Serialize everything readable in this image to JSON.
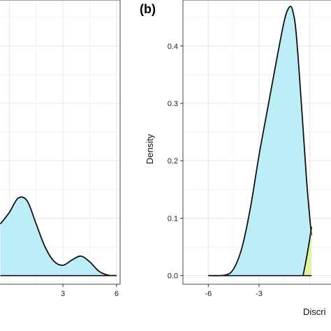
{
  "chart_data": [
    {
      "type": "area",
      "panel_label": "",
      "title": "",
      "xlabel": "",
      "ylabel": "",
      "xlim": [
        -0.6,
        6.2
      ],
      "ylim": [
        -0.015,
        0.48
      ],
      "x_ticks": [
        3,
        6
      ],
      "x_tick_labels": [
        "3",
        "6"
      ],
      "grid": true,
      "colors": {
        "fill_primary": "#bdeef7",
        "outline": "#111111",
        "grid": "#e6e6e6",
        "frame": "#666666"
      },
      "series": [
        {
          "fill": "#bdeef7",
          "x": [
            -0.5,
            0,
            0.5,
            1.0,
            1.5,
            2.0,
            2.5,
            3.0,
            3.5,
            4.0,
            4.5,
            5.0,
            5.5,
            6.0
          ],
          "y": [
            0.09,
            0.11,
            0.135,
            0.13,
            0.09,
            0.05,
            0.025,
            0.018,
            0.027,
            0.034,
            0.024,
            0.008,
            0.001,
            0.0
          ]
        }
      ]
    },
    {
      "type": "area",
      "panel_label": "(b)",
      "title": "",
      "xlabel": "Discri",
      "ylabel": "Density",
      "xlim": [
        -7.5,
        1.5
      ],
      "ylim": [
        -0.015,
        0.48
      ],
      "x_ticks": [
        -6,
        -3
      ],
      "x_tick_labels": [
        "-6",
        "-3"
      ],
      "y_ticks": [
        0.0,
        0.1,
        0.2,
        0.3,
        0.4
      ],
      "y_tick_labels": [
        "0.0",
        "0.1",
        "0.2",
        "0.3",
        "0.4"
      ],
      "grid": true,
      "colors": {
        "fill_primary": "#bdeef7",
        "fill_secondary": "#e2f3a6",
        "outline": "#111111",
        "grid": "#e6e6e6",
        "frame": "#666666"
      },
      "series": [
        {
          "fill": "#bdeef7",
          "x": [
            -6.0,
            -5.0,
            -4.5,
            -4.0,
            -3.5,
            -3.0,
            -2.5,
            -2.0,
            -1.5,
            -1.2,
            -1.0,
            -0.8,
            -0.5,
            -0.2,
            0.0,
            0.1
          ],
          "y": [
            0.0,
            0.001,
            0.012,
            0.05,
            0.12,
            0.21,
            0.29,
            0.37,
            0.445,
            0.468,
            0.46,
            0.42,
            0.3,
            0.17,
            0.1,
            0.07
          ]
        },
        {
          "fill": "#e2f3a6",
          "x": [
            -0.4,
            -0.2,
            0.0,
            0.1
          ],
          "y": [
            0.0,
            0.03,
            0.065,
            0.085
          ]
        }
      ]
    }
  ]
}
